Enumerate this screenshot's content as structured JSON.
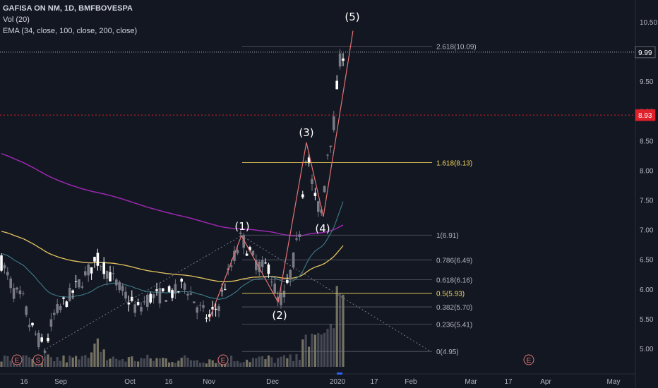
{
  "legend": {
    "title": "GAFISA ON NM, 1D, BMFBOVESPA",
    "vol": "Vol (20)",
    "ema": "EMA (34, close, 100, close, 200, close)"
  },
  "chart_data": {
    "type": "candlestick",
    "symbol": "GAFISA ON NM",
    "interval": "1D",
    "exchange": "BMFBOVESPA",
    "ylim": [
      4.8,
      10.65
    ],
    "y_ticks": [
      "10.50",
      "9.50",
      "9.00",
      "8.50",
      "8.00",
      "7.50",
      "7.00",
      "6.50",
      "6.00",
      "5.50",
      "5.00"
    ],
    "x_ticks": [
      "16",
      "Sep",
      "Oct",
      "16",
      "Nov",
      "Dec",
      "2020",
      "17",
      "Feb",
      "Mar",
      "17",
      "Apr",
      "May"
    ],
    "price_badges": [
      {
        "value": "9.99",
        "color": "#ffffff",
        "bg": "#131722"
      },
      {
        "value": "8.93",
        "color": "#ffffff",
        "bg": "#e0202a"
      }
    ],
    "fib_levels": [
      {
        "label": "2.618(10.09)",
        "value": 10.09,
        "highlight": false
      },
      {
        "label": "1.618(8.13)",
        "value": 8.13,
        "highlight": true
      },
      {
        "label": "1(6.91)",
        "value": 6.91,
        "highlight": false
      },
      {
        "label": "0.786(6.49)",
        "value": 6.49,
        "highlight": false
      },
      {
        "label": "0.618(6.16)",
        "value": 6.16,
        "highlight": false
      },
      {
        "label": "0.5(5.93)",
        "value": 5.93,
        "highlight": true
      },
      {
        "label": "0.382(5.70)",
        "value": 5.7,
        "highlight": false
      },
      {
        "label": "0.236(5.41)",
        "value": 5.41,
        "highlight": false
      },
      {
        "label": "0(4.95)",
        "value": 4.95,
        "highlight": false
      }
    ],
    "wave_labels": [
      {
        "label": "(1)",
        "price": 6.91
      },
      {
        "label": "(2)",
        "price": 5.78
      },
      {
        "label": "(3)",
        "price": 8.47
      },
      {
        "label": "(4)",
        "price": 7.22
      },
      {
        "label": "(5)",
        "price": 10.35
      }
    ],
    "event_markers": [
      {
        "label": "E"
      },
      {
        "label": "S"
      },
      {
        "label": "E"
      },
      {
        "label": "E"
      }
    ],
    "colors": {
      "up": "#ffffff",
      "down": "#787b86",
      "ema34": "#3d7c8a",
      "ema100": "#e6c65f",
      "ema200": "#9c27b0",
      "fib_line": "#787b86",
      "fib_highlight": "#f0d35a",
      "wave": "#e57373",
      "grid_dash": "#e0202a"
    }
  }
}
